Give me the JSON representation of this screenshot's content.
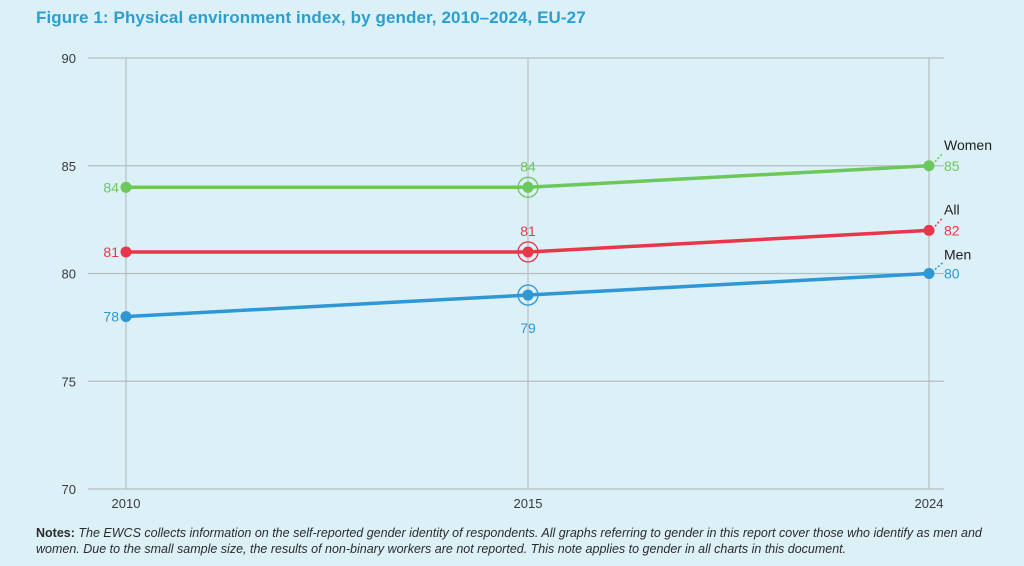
{
  "figure": {
    "title": "Figure  1: Physical environment index, by gender, 2010–2024, EU-27"
  },
  "notes": {
    "label": "Notes:",
    "text": "The EWCS collects information on the self-reported gender identity of respondents. All graphs referring to gender in this report cover those who identify as men and women. Due to the small sample size, the results of non-binary workers are not reported. This note applies to gender in all charts in this document."
  },
  "chart_data": {
    "type": "line",
    "x": [
      "2010",
      "2015",
      "2024"
    ],
    "ylim": [
      70,
      90
    ],
    "yticks": [
      70,
      75,
      80,
      85,
      90
    ],
    "grid": true,
    "legend": "end-labels-right",
    "series": [
      {
        "name": "Women",
        "color": "#6cc85a",
        "values": [
          84,
          84,
          85
        ]
      },
      {
        "name": "All",
        "color": "#e8374a",
        "values": [
          81,
          81,
          82
        ]
      },
      {
        "name": "Men",
        "color": "#2f97d3",
        "values": [
          78,
          79,
          80
        ]
      }
    ]
  }
}
